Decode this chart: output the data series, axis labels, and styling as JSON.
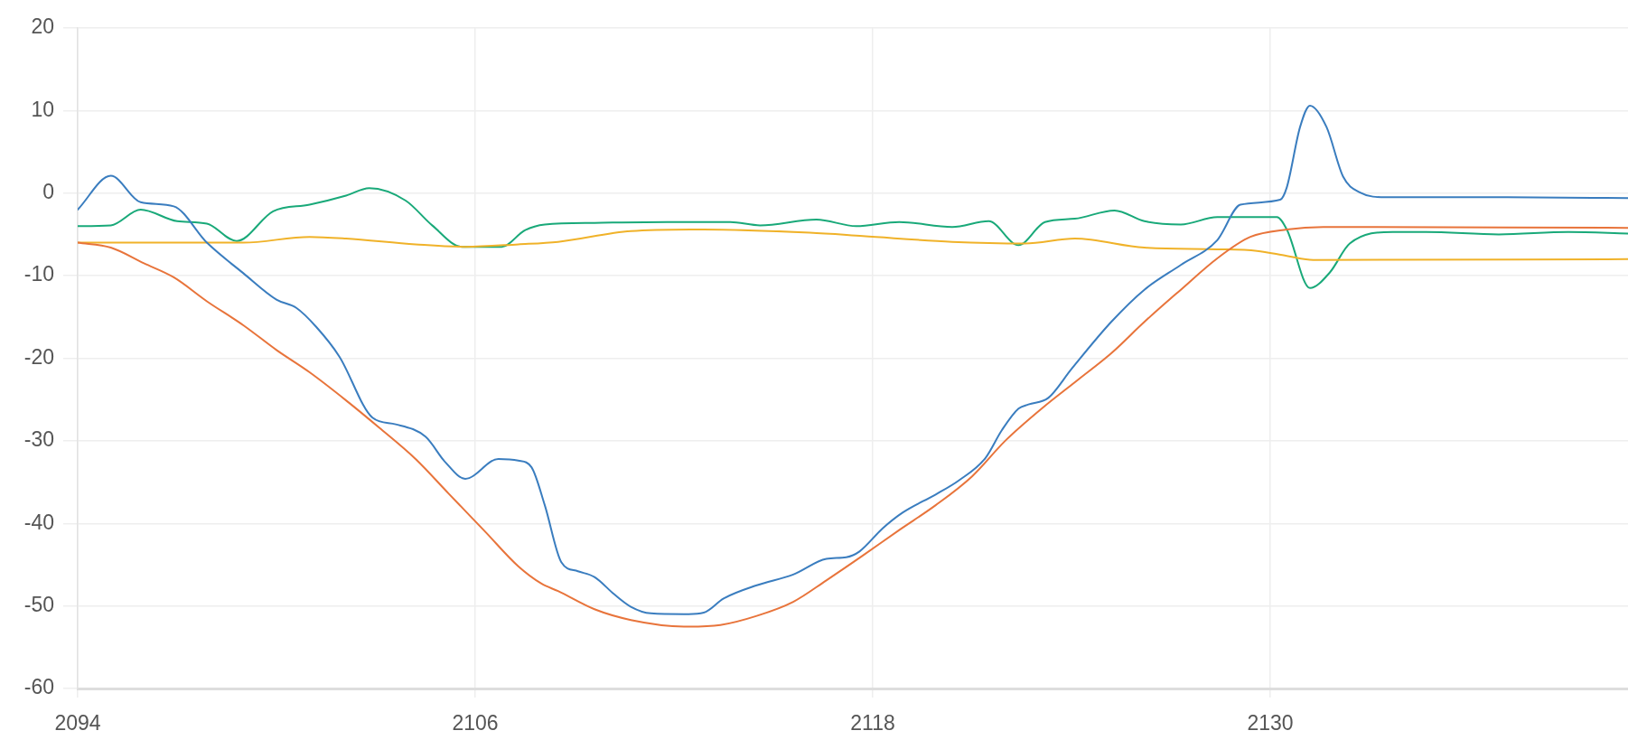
{
  "chart_data": {
    "type": "line",
    "xlim": [
      2094,
      2140.8
    ],
    "xticks": [
      2094,
      2106,
      2118,
      2130
    ],
    "ylim": [
      -60,
      20
    ],
    "yticks": [
      -60,
      -50,
      -40,
      -30,
      -20,
      -10,
      0,
      10,
      20
    ],
    "grid": true,
    "marker": "none",
    "series": [
      {
        "color": "#3a7dbf",
        "x": [
          2094,
          2095.0,
          2095.9,
          2096.9,
          2097.9,
          2099.0,
          2100.0,
          2100.6,
          2101.2,
          2101.9,
          2102.9,
          2103.6,
          2104.5,
          2105.1,
          2105.7,
          2106.7,
          2107.3,
          2107.7,
          2108.1,
          2108.6,
          2109.1,
          2109.6,
          2110.2,
          2110.7,
          2111.3,
          2112.3,
          2112.9,
          2113.5,
          2114.5,
          2115.6,
          2116.6,
          2117.2,
          2117.6,
          2118.3,
          2118.9,
          2119.9,
          2120.6,
          2121.4,
          2121.9,
          2122.4,
          2122.7,
          2123.3,
          2124.0,
          2125.2,
          2126.2,
          2127.3,
          2128.4,
          2129.1,
          2130.3,
          2130.5,
          2130.9,
          2131.2,
          2131.7,
          2132.2,
          2132.7,
          2133.5,
          2136.9,
          2140.8
        ],
        "values": [
          -2.0,
          2.1,
          -1.1,
          -1.6,
          -6.0,
          -9.7,
          -12.9,
          -13.9,
          -16.2,
          -19.8,
          -27.2,
          -28.0,
          -29.5,
          -32.6,
          -34.6,
          -32.2,
          -32.4,
          -33.2,
          -37.8,
          -44.7,
          -45.8,
          -46.5,
          -48.6,
          -50.1,
          -50.9,
          -51.0,
          -50.8,
          -49.1,
          -47.5,
          -46.2,
          -44.3,
          -44.1,
          -43.4,
          -40.6,
          -38.7,
          -36.5,
          -34.8,
          -32.1,
          -28.7,
          -26.1,
          -25.6,
          -24.8,
          -21.3,
          -15.6,
          -11.7,
          -8.7,
          -5.7,
          -1.4,
          -0.8,
          0.7,
          8.0,
          10.6,
          8.0,
          2.0,
          0.1,
          -0.5,
          -0.5,
          -0.6
        ]
      },
      {
        "color": "#e8743b",
        "x": [
          2094,
          2095.0,
          2096.0,
          2096.9,
          2097.9,
          2099.0,
          2100.0,
          2101.0,
          2102.1,
          2103.1,
          2104.2,
          2105.2,
          2106.3,
          2107.3,
          2108.0,
          2108.5,
          2109.6,
          2110.7,
          2112.3,
          2113.4,
          2114.5,
          2115.6,
          2116.6,
          2117.7,
          2118.8,
          2119.9,
          2121.0,
          2122.0,
          2123.1,
          2124.2,
          2125.2,
          2126.2,
          2127.3,
          2128.4,
          2129.4,
          2130.5,
          2131.6,
          2140.8
        ],
        "values": [
          -6.0,
          -6.6,
          -8.5,
          -10.2,
          -13.1,
          -16.0,
          -19.0,
          -21.7,
          -25.1,
          -28.4,
          -32.2,
          -36.4,
          -41.0,
          -45.2,
          -47.3,
          -48.2,
          -50.4,
          -51.7,
          -52.5,
          -52.3,
          -51.2,
          -49.5,
          -46.9,
          -43.9,
          -40.8,
          -37.8,
          -34.3,
          -30.0,
          -26.1,
          -22.6,
          -19.4,
          -15.6,
          -11.7,
          -7.9,
          -5.3,
          -4.4,
          -4.1,
          -4.2
        ]
      },
      {
        "color": "#f0b229",
        "x": [
          2094,
          2099.0,
          2101.0,
          2102.1,
          2104.2,
          2105.7,
          2107.3,
          2108.5,
          2110.7,
          2112.9,
          2116.1,
          2117.7,
          2120.4,
          2122.6,
          2124.1,
          2126.2,
          2128.4,
          2129.6,
          2130.5,
          2131.3,
          2140.8
        ],
        "values": [
          -6.0,
          -6.0,
          -5.3,
          -5.5,
          -6.2,
          -6.5,
          -6.2,
          -5.9,
          -4.6,
          -4.4,
          -4.8,
          -5.2,
          -5.9,
          -6.1,
          -5.5,
          -6.6,
          -6.8,
          -7.0,
          -7.6,
          -8.1,
          -8.0
        ]
      },
      {
        "color": "#19a979",
        "x": [
          2094,
          2095.0,
          2095.9,
          2097.0,
          2097.9,
          2098.8,
          2099.9,
          2101.0,
          2102.1,
          2102.8,
          2103.9,
          2104.7,
          2105.6,
          2106.8,
          2107.5,
          2108.1,
          2109.6,
          2111.8,
          2113.7,
          2114.6,
          2116.3,
          2117.5,
          2118.8,
          2120.4,
          2121.5,
          2122.4,
          2123.2,
          2124.1,
          2125.3,
          2126.2,
          2127.3,
          2128.4,
          2130.2,
          2130.5,
          2131.2,
          2131.8,
          2132.4,
          2133.7,
          2134.7,
          2136.9,
          2139.0,
          2140.8
        ],
        "values": [
          -4.0,
          -3.9,
          -2.0,
          -3.4,
          -3.7,
          -5.8,
          -2.2,
          -1.4,
          -0.3,
          0.6,
          -0.9,
          -3.9,
          -6.5,
          -6.5,
          -4.5,
          -3.8,
          -3.6,
          -3.5,
          -3.5,
          -3.9,
          -3.2,
          -4.0,
          -3.5,
          -4.1,
          -3.4,
          -6.3,
          -3.5,
          -3.1,
          -2.1,
          -3.4,
          -3.8,
          -2.9,
          -2.9,
          -4.4,
          -11.5,
          -9.6,
          -6.1,
          -4.7,
          -4.7,
          -5.0,
          -4.7,
          -4.9
        ]
      }
    ]
  }
}
